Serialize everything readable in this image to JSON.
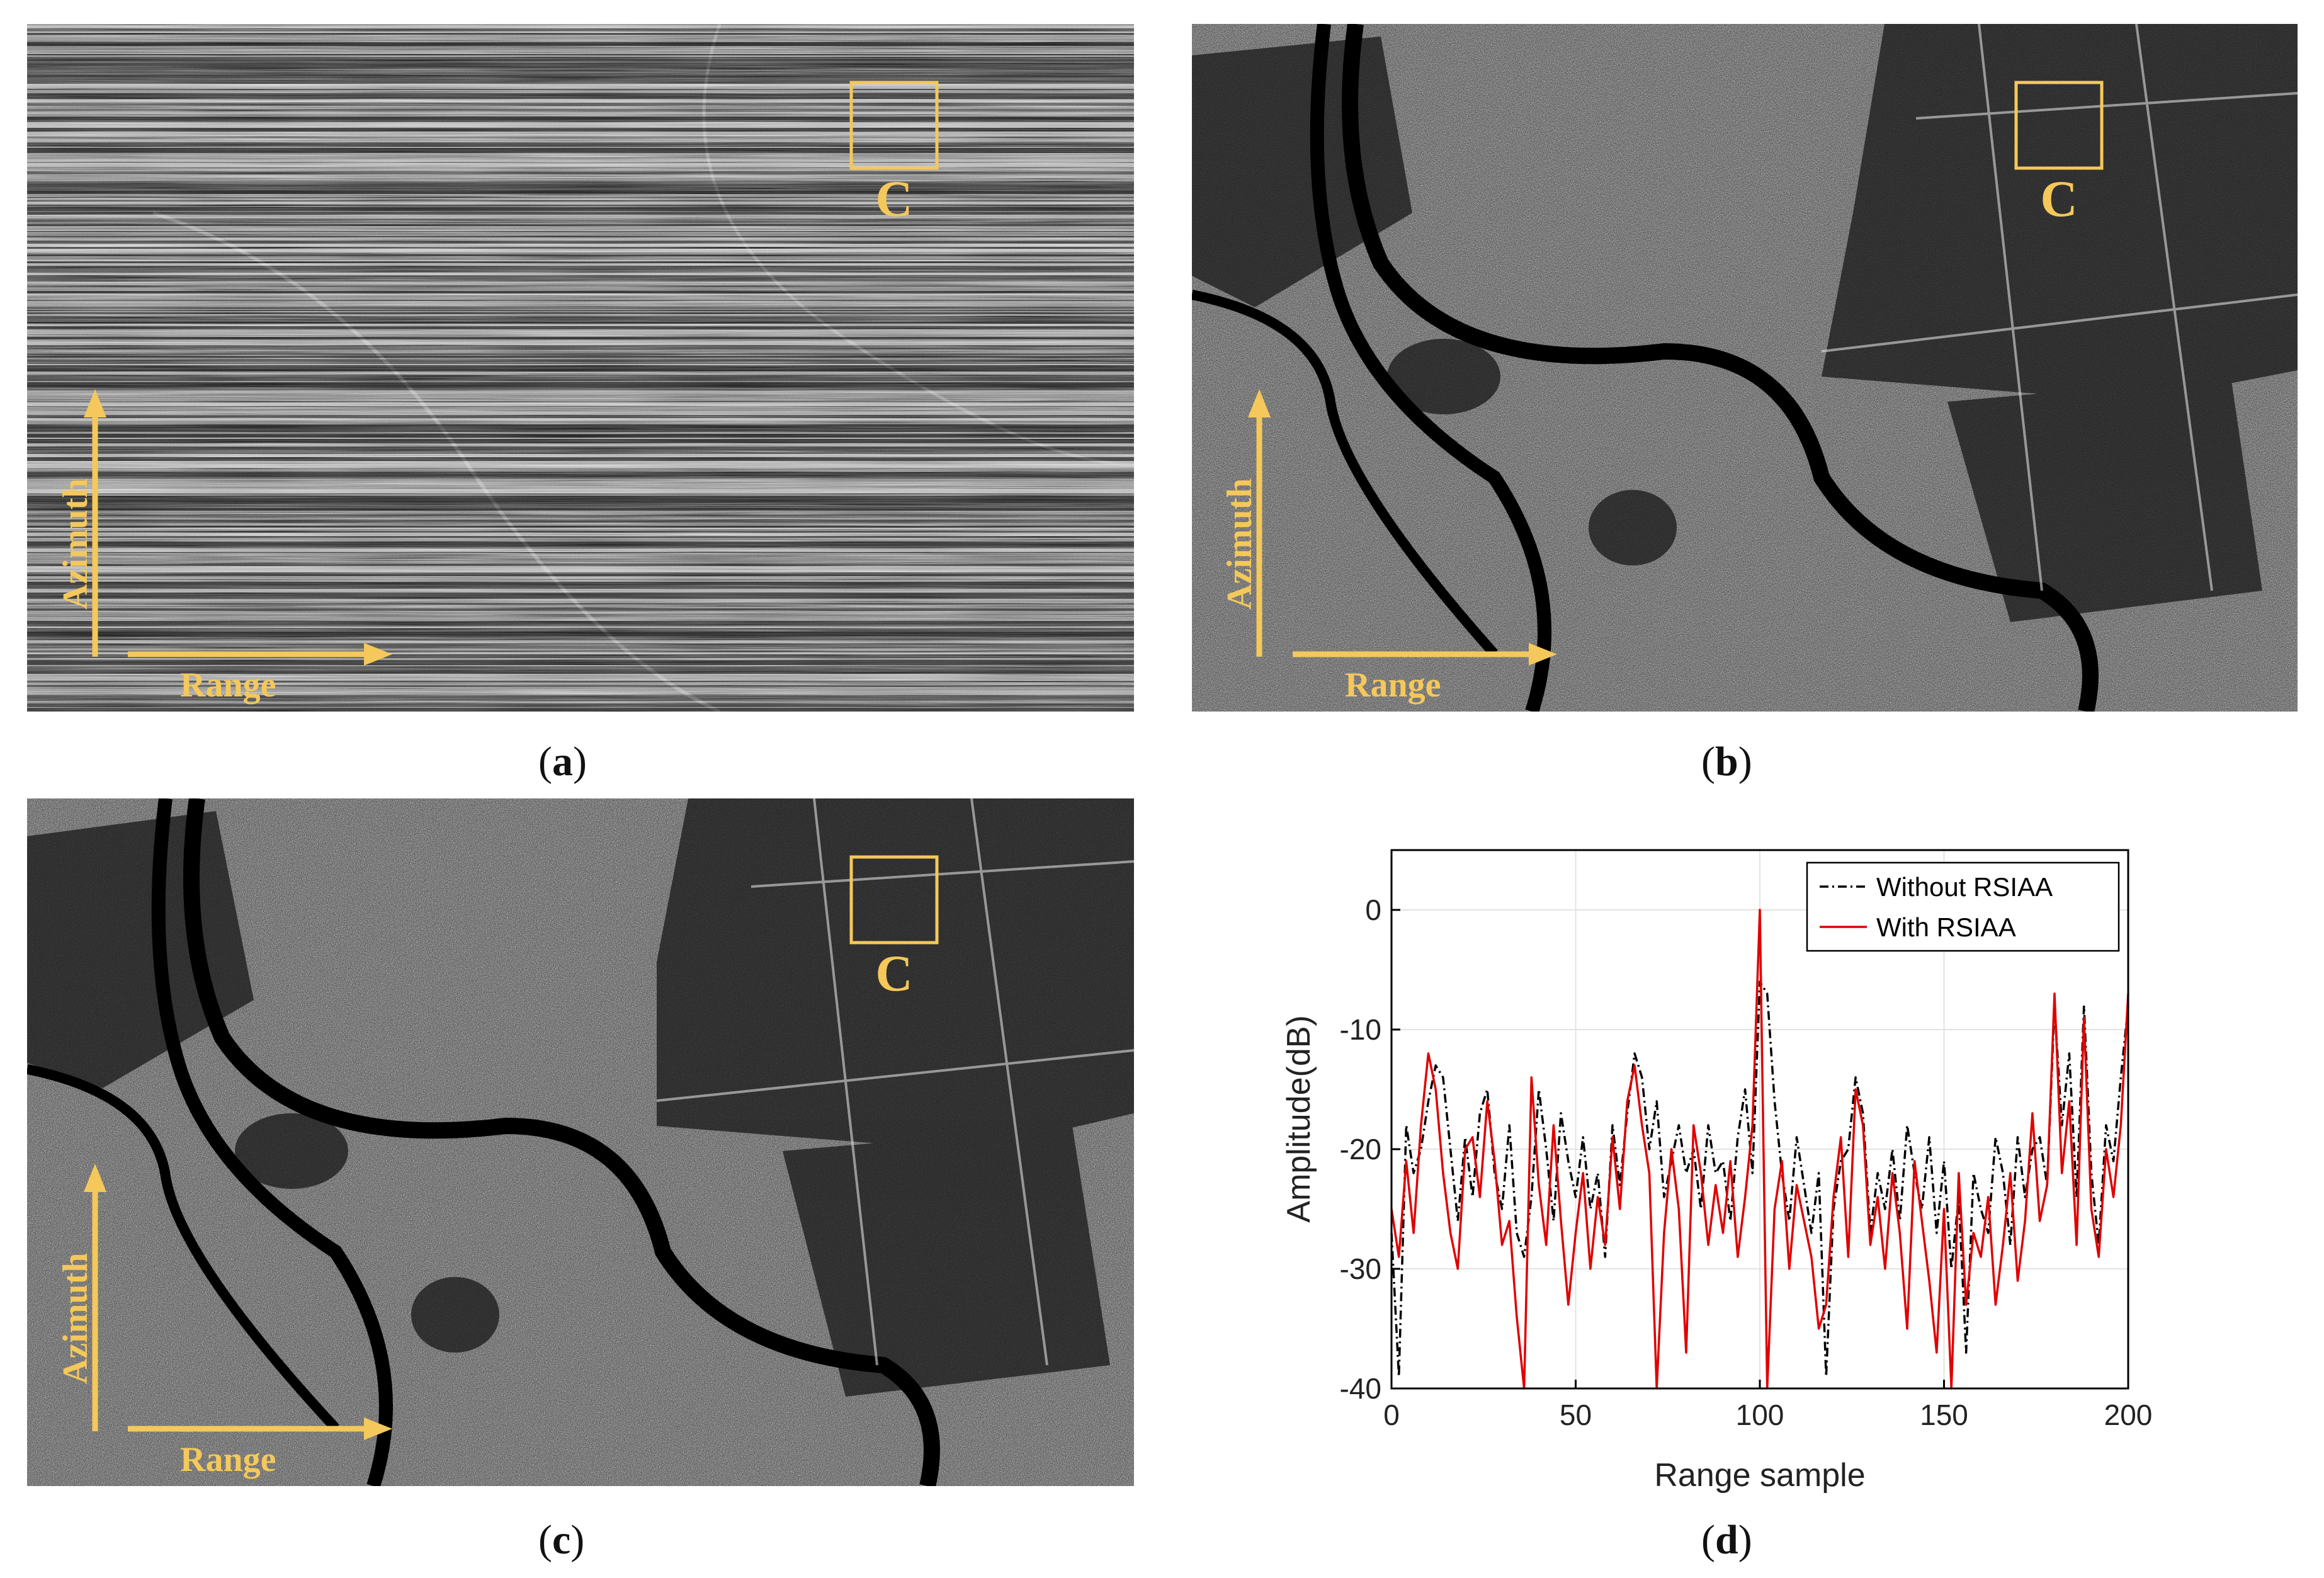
{
  "panels": [
    {
      "id": "a",
      "caption_letter": "a",
      "box_label": "C",
      "azimuth_label": "Azimuth",
      "range_label": "Range",
      "style": "striped"
    },
    {
      "id": "b",
      "caption_letter": "b",
      "box_label": "C",
      "azimuth_label": "Azimuth",
      "range_label": "Range",
      "style": "clean"
    },
    {
      "id": "c",
      "caption_letter": "c",
      "box_label": "C",
      "azimuth_label": "Azimuth",
      "range_label": "Range",
      "style": "clean"
    }
  ],
  "colors": {
    "annotation": "#f4c85a",
    "series_without": "#000000",
    "series_with": "#e00000"
  },
  "captions": {
    "d": "d"
  },
  "chart_data": {
    "type": "line",
    "title": "",
    "xlabel": "Range sample",
    "ylabel": "Amplitude(dB)",
    "xlim": [
      0,
      200
    ],
    "ylim": [
      -40,
      5
    ],
    "xticks": [
      0,
      50,
      100,
      150,
      200
    ],
    "yticks": [
      0,
      -10,
      -20,
      -30,
      -40
    ],
    "grid": true,
    "legend_position": "top-right",
    "x": [
      0,
      2,
      4,
      6,
      8,
      10,
      12,
      14,
      16,
      18,
      20,
      22,
      24,
      26,
      28,
      30,
      32,
      34,
      36,
      38,
      40,
      42,
      44,
      46,
      48,
      50,
      52,
      54,
      56,
      58,
      60,
      62,
      64,
      66,
      68,
      70,
      72,
      74,
      76,
      78,
      80,
      82,
      84,
      86,
      88,
      90,
      92,
      94,
      96,
      98,
      100,
      102,
      104,
      106,
      108,
      110,
      112,
      114,
      116,
      118,
      120,
      122,
      124,
      126,
      128,
      130,
      132,
      134,
      136,
      138,
      140,
      142,
      144,
      146,
      148,
      150,
      152,
      154,
      156,
      158,
      160,
      162,
      164,
      166,
      168,
      170,
      172,
      174,
      176,
      178,
      180,
      182,
      184,
      186,
      188,
      190,
      192,
      194,
      196,
      198,
      200
    ],
    "series": [
      {
        "name": "Without RSIAA",
        "style": "dash-dot",
        "color": "#000000",
        "values": [
          -27,
          -39,
          -18,
          -22,
          -20,
          -16,
          -13,
          -14,
          -20,
          -26,
          -19,
          -24,
          -17,
          -15,
          -22,
          -25,
          -18,
          -27,
          -29,
          -24,
          -15,
          -20,
          -26,
          -17,
          -21,
          -24,
          -19,
          -25,
          -22,
          -29,
          -18,
          -23,
          -17,
          -12,
          -14,
          -20,
          -16,
          -24,
          -21,
          -18,
          -22,
          -20,
          -25,
          -18,
          -22,
          -21,
          -26,
          -19,
          -15,
          -22,
          -6,
          -7,
          -16,
          -22,
          -26,
          -19,
          -23,
          -27,
          -22,
          -39,
          -25,
          -21,
          -20,
          -14,
          -17,
          -27,
          -22,
          -25,
          -20,
          -26,
          -18,
          -22,
          -25,
          -19,
          -27,
          -21,
          -30,
          -24,
          -37,
          -22,
          -25,
          -27,
          -19,
          -22,
          -28,
          -19,
          -24,
          -20,
          -19,
          -23,
          -8,
          -18,
          -12,
          -24,
          -8,
          -22,
          -28,
          -18,
          -21,
          -14,
          -8
        ]
      },
      {
        "name": "With RSIAA",
        "style": "solid",
        "color": "#e00000",
        "values": [
          -25,
          -29,
          -21,
          -27,
          -18,
          -12,
          -15,
          -22,
          -27,
          -30,
          -20,
          -19,
          -24,
          -16,
          -21,
          -28,
          -26,
          -34,
          -40,
          -14,
          -23,
          -28,
          -18,
          -26,
          -33,
          -27,
          -22,
          -30,
          -24,
          -28,
          -19,
          -25,
          -16,
          -13,
          -18,
          -22,
          -40,
          -27,
          -20,
          -25,
          -37,
          -18,
          -22,
          -28,
          -23,
          -27,
          -21,
          -29,
          -24,
          -18,
          0,
          -40,
          -25,
          -21,
          -30,
          -23,
          -26,
          -29,
          -35,
          -33,
          -24,
          -19,
          -29,
          -15,
          -18,
          -28,
          -24,
          -30,
          -22,
          -27,
          -35,
          -21,
          -26,
          -31,
          -37,
          -25,
          -40,
          -22,
          -33,
          -27,
          -29,
          -24,
          -33,
          -28,
          -22,
          -31,
          -26,
          -17,
          -26,
          -23,
          -7,
          -22,
          -16,
          -28,
          -9,
          -25,
          -29,
          -20,
          -24,
          -18,
          -7
        ]
      }
    ]
  }
}
